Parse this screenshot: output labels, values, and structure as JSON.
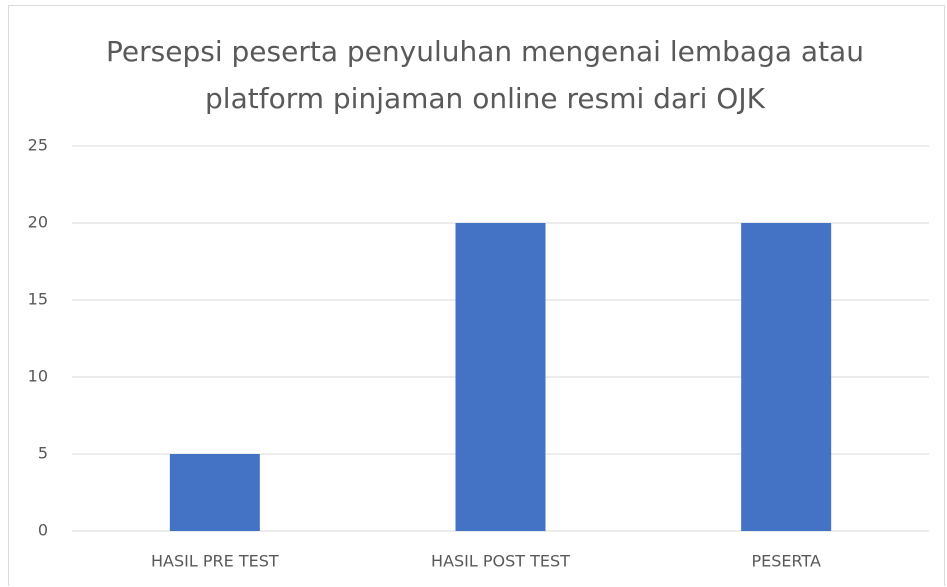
{
  "chart_data": {
    "type": "bar",
    "title": "Persepsi peserta penyuluhan mengenai lembaga atau platform pinjaman online resmi dari OJK",
    "categories": [
      "HASIL PRE TEST",
      "HASIL POST TEST",
      "PESERTA"
    ],
    "values": [
      5,
      20,
      20
    ],
    "color": "#4472c4",
    "ylim": [
      0,
      25
    ],
    "yticks": [
      0,
      5,
      10,
      15,
      20,
      25
    ],
    "grid": true
  }
}
